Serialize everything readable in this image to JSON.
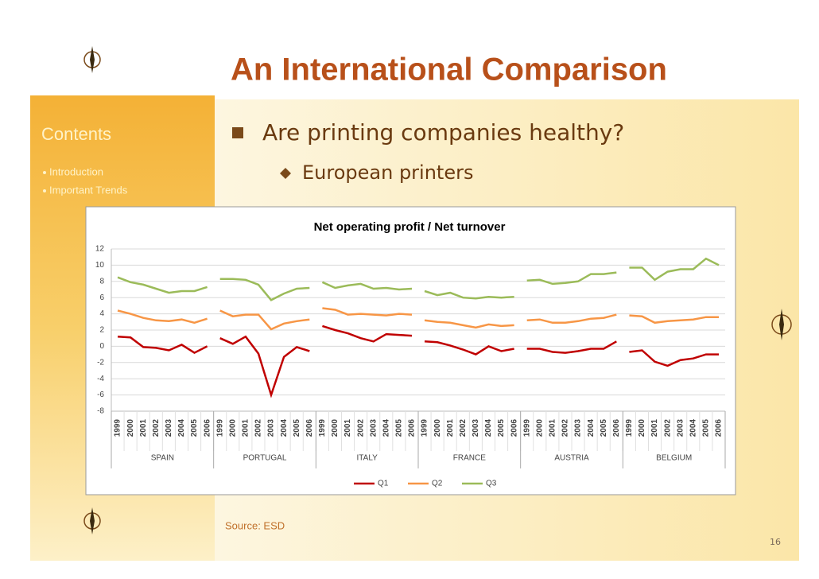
{
  "slide": {
    "title": "An International Comparison",
    "bullet": "Are printing companies healthy?",
    "sub_bullet": "European printers",
    "sidebar": {
      "heading": "Contents",
      "items": [
        "Introduction",
        "Important Trends"
      ]
    },
    "source": "Source: ESD",
    "page_number": "16"
  },
  "chart_data": {
    "type": "line",
    "title": "Net operating profit / Net turnover",
    "groups": [
      "SPAIN",
      "PORTUGAL",
      "ITALY",
      "FRANCE",
      "AUSTRIA",
      "BELGIUM"
    ],
    "categories": [
      "1999",
      "2000",
      "2001",
      "2002",
      "2003",
      "2004",
      "2005",
      "2006",
      "1999",
      "2000",
      "2001",
      "2002",
      "2003",
      "2004",
      "2005",
      "2006",
      "1999",
      "2000",
      "2001",
      "2002",
      "2003",
      "2004",
      "2005",
      "2006",
      "1999",
      "2000",
      "2001",
      "2002",
      "2003",
      "2004",
      "2005",
      "2006",
      "1999",
      "2000",
      "2001",
      "2002",
      "2003",
      "2004",
      "2005",
      "2006",
      "1999",
      "2000",
      "2001",
      "2002",
      "2003",
      "2004",
      "2005",
      "2006"
    ],
    "series": [
      {
        "name": "Q1",
        "color": "#c00000",
        "values": [
          1.2,
          1.1,
          -0.1,
          -0.2,
          -0.5,
          0.2,
          -0.8,
          0.0,
          1.0,
          0.3,
          1.2,
          -0.9,
          -6.0,
          -1.3,
          -0.1,
          -0.6,
          2.5,
          2.0,
          1.6,
          1.0,
          0.6,
          1.5,
          1.4,
          1.3,
          0.6,
          0.5,
          0.1,
          -0.4,
          -1.0,
          0.0,
          -0.6,
          -0.3,
          -0.3,
          -0.3,
          -0.7,
          -0.8,
          -0.6,
          -0.3,
          -0.3,
          0.6,
          -0.7,
          -0.5,
          -1.9,
          -2.4,
          -1.7,
          -1.5,
          -1.0,
          -1.0
        ]
      },
      {
        "name": "Q2",
        "color": "#f79646",
        "values": [
          4.4,
          4.0,
          3.5,
          3.2,
          3.1,
          3.3,
          2.9,
          3.4,
          4.4,
          3.7,
          3.9,
          3.9,
          2.1,
          2.8,
          3.1,
          3.3,
          4.7,
          4.5,
          3.9,
          4.0,
          3.9,
          3.8,
          4.0,
          3.9,
          3.2,
          3.0,
          2.9,
          2.6,
          2.3,
          2.7,
          2.5,
          2.6,
          3.2,
          3.3,
          2.9,
          2.9,
          3.1,
          3.4,
          3.5,
          3.9,
          3.8,
          3.7,
          2.9,
          3.1,
          3.2,
          3.3,
          3.6,
          3.6
        ]
      },
      {
        "name": "Q3",
        "color": "#9bbb59",
        "values": [
          8.5,
          7.9,
          7.6,
          7.1,
          6.6,
          6.8,
          6.8,
          7.3,
          8.3,
          8.3,
          8.2,
          7.6,
          5.7,
          6.5,
          7.1,
          7.2,
          7.9,
          7.2,
          7.5,
          7.7,
          7.1,
          7.2,
          7.0,
          7.1,
          6.8,
          6.3,
          6.6,
          6.0,
          5.9,
          6.1,
          6.0,
          6.1,
          8.1,
          8.2,
          7.7,
          7.8,
          8.0,
          8.9,
          8.9,
          9.1,
          9.7,
          9.7,
          8.2,
          9.2,
          9.5,
          9.5,
          10.8,
          10.0
        ]
      }
    ],
    "ylim": [
      -8,
      12
    ],
    "yticks": [
      -8,
      -6,
      -4,
      -2,
      0,
      2,
      4,
      6,
      8,
      10,
      12
    ],
    "grid": true,
    "legend": "bottom"
  }
}
